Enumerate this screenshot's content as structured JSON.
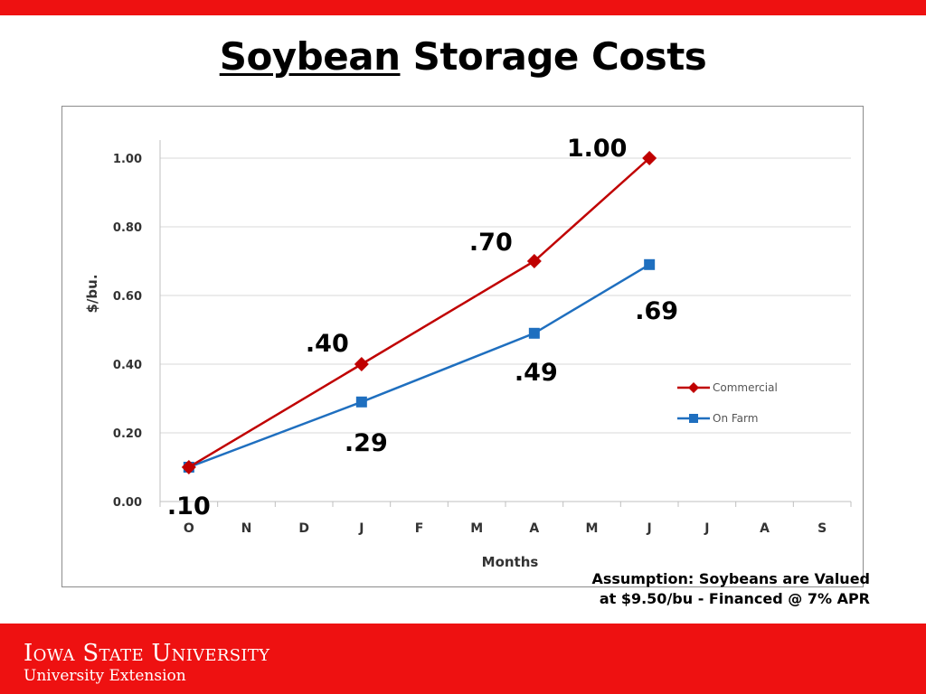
{
  "title": {
    "underlined": "Soybean",
    "rest": "Storage Costs"
  },
  "note": {
    "line1": "Assumption: Soybeans are Valued",
    "line2": "at $9.50/bu - Financed @ 7% APR"
  },
  "footer": {
    "university": "Iowa State University",
    "unit": "University Extension"
  },
  "colors": {
    "banner": "#ee1111",
    "commercial": "#c00000",
    "on_farm": "#1f6fbf",
    "grid": "#d9d9d9"
  },
  "chart_data": {
    "type": "line",
    "categories": [
      "O",
      "N",
      "D",
      "J",
      "F",
      "M",
      "A",
      "M",
      "J",
      "J",
      "A",
      "S"
    ],
    "xlabel": "Months",
    "ylabel": "$/bu.",
    "ylim": [
      0,
      1.0
    ],
    "yticks": [
      "0.00",
      "0.20",
      "0.40",
      "0.60",
      "0.80",
      "1.00"
    ],
    "grid": true,
    "legend_position": "right",
    "series": [
      {
        "name": "Commercial",
        "marker": "diamond",
        "points": [
          {
            "x": "O",
            "y": 0.1,
            "label": ".10"
          },
          {
            "x": "J",
            "y": 0.4,
            "label": ".40"
          },
          {
            "x": "A",
            "y": 0.7,
            "label": ".70"
          },
          {
            "x": "J",
            "y": 1.0,
            "label": "1.00"
          }
        ]
      },
      {
        "name": "On Farm",
        "marker": "square",
        "points": [
          {
            "x": "O",
            "y": 0.1,
            "label": ""
          },
          {
            "x": "J",
            "y": 0.29,
            "label": ".29"
          },
          {
            "x": "A",
            "y": 0.49,
            "label": ".49"
          },
          {
            "x": "J",
            "y": 0.69,
            "label": ".69"
          }
        ]
      }
    ]
  }
}
